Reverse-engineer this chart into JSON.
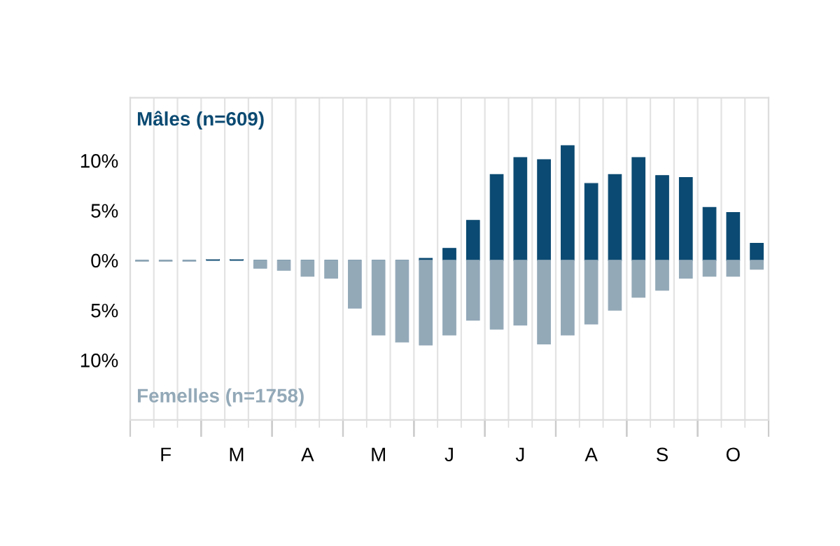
{
  "chart_data": {
    "type": "bar",
    "categories": [
      null,
      "F",
      null,
      null,
      "M",
      null,
      null,
      "A",
      null,
      null,
      "M",
      null,
      null,
      "J",
      null,
      null,
      "J",
      null,
      null,
      "A",
      null,
      null,
      "S",
      null,
      null,
      "O",
      null
    ],
    "series": [
      {
        "name": "Mâles (n=609)",
        "color": "#0b4a72",
        "values": [
          0,
          0,
          0,
          0.1,
          0.1,
          0,
          0,
          0,
          0,
          0,
          0,
          0,
          0.2,
          1.2,
          4.0,
          8.6,
          10.3,
          10.1,
          11.5,
          7.7,
          8.6,
          10.3,
          8.5,
          8.3,
          5.3,
          4.8,
          1.7
        ]
      },
      {
        "name": "Femelles (n=1758)",
        "color": "#93a9b8",
        "values": [
          -0.1,
          -0.1,
          -0.1,
          0,
          0,
          -0.8,
          -1.0,
          -1.6,
          -1.8,
          -4.8,
          -7.5,
          -8.2,
          -8.5,
          -7.5,
          -6.0,
          -6.9,
          -6.5,
          -8.4,
          -7.5,
          -6.4,
          -5.0,
          -3.7,
          -3.0,
          -1.8,
          -1.6,
          -1.6,
          -0.9
        ]
      }
    ],
    "ylim": [
      -16,
      16.3
    ],
    "yticks": [
      {
        "value": -10,
        "label": "10%"
      },
      {
        "value": -5,
        "label": "5%"
      },
      {
        "value": 0,
        "label": "0%"
      },
      {
        "value": 5,
        "label": "5%"
      },
      {
        "value": 10,
        "label": "10%"
      }
    ],
    "stacked": true,
    "grid": "x",
    "legend": false
  }
}
